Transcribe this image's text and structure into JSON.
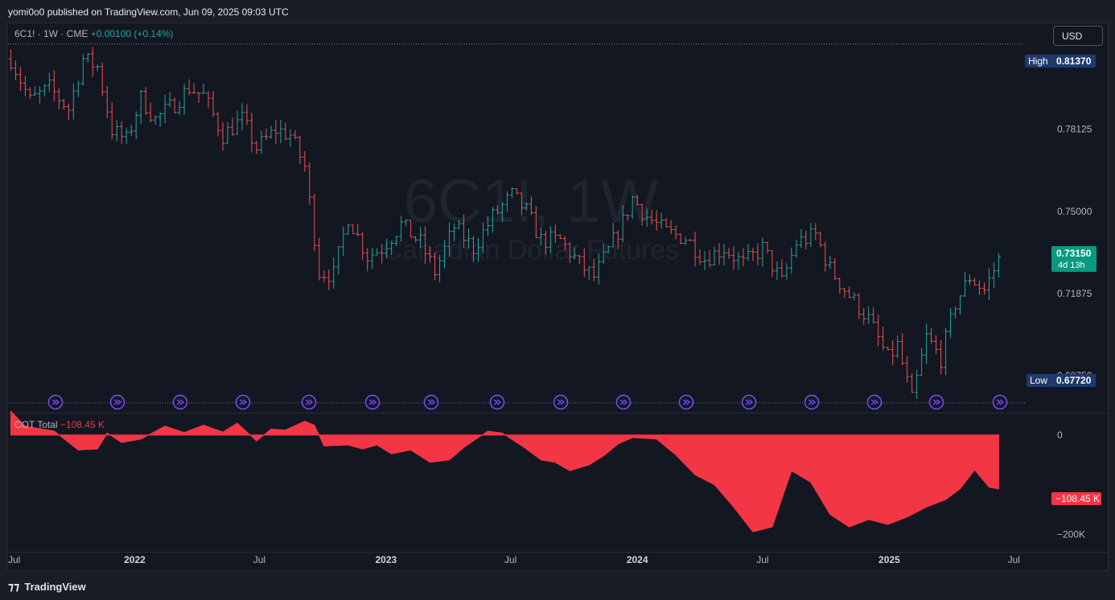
{
  "header": {
    "published": "yomi0o0 published on TradingView.com, Jun 09, 2025 09:03 UTC"
  },
  "legend": {
    "symbol": "6C1! · 1W · CME",
    "change": "+0.00100 (+0.14%)"
  },
  "currency_button": "USD",
  "watermark": {
    "title": "6C1!, 1W",
    "subtitle": "Canadian Dollar Futures"
  },
  "price_labels": {
    "high_tag": "High",
    "high_value": "0.81370",
    "low_tag": "Low",
    "low_value": "0.67720",
    "current_value": "0.73150",
    "current_countdown": "4d 13h"
  },
  "cot": {
    "title": "COT Total",
    "value": "−108.45 K",
    "tag": "−108.45 K"
  },
  "footer": {
    "brand": "TradingView"
  },
  "colors": {
    "up": "#26a69a",
    "down": "#ef5350",
    "cot_fill": "#f23645",
    "event_icon": "#7b4dff"
  },
  "icons": [
    "tv-logo-icon",
    "split-arrow-icon"
  ],
  "chart_data": [
    {
      "type": "ohlc",
      "title": "6C1!, 1W",
      "subtitle": "Canadian Dollar Futures",
      "interval": "1W",
      "y_ticks": [
        "0.78125",
        "0.75000",
        "0.71875",
        "0.68750"
      ],
      "y_tick_values": [
        0.78125,
        0.75,
        0.71875,
        0.6875
      ],
      "ylim": [
        0.6738,
        0.8218
      ],
      "x_ticks": [
        "Jul",
        "2022",
        "Jul",
        "2023",
        "Jul",
        "2024",
        "Jul",
        "2025",
        "Jul"
      ],
      "x_tick_dates": [
        "2021-07-01",
        "2022-01-01",
        "2022-07-01",
        "2023-01-01",
        "2023-07-01",
        "2024-01-01",
        "2024-07-01",
        "2025-01-01",
        "2025-07-01"
      ],
      "xlim": [
        "2021-07-01",
        "2025-07-10"
      ],
      "high": 0.8137,
      "low": 0.6772,
      "last": 0.7315,
      "price_path": [
        [
          "2021-07-05",
          0.808
        ],
        [
          "2021-08-02",
          0.792
        ],
        [
          "2021-08-30",
          0.797
        ],
        [
          "2021-09-27",
          0.789
        ],
        [
          "2021-10-18",
          0.808
        ],
        [
          "2021-11-08",
          0.805
        ],
        [
          "2021-11-29",
          0.781
        ],
        [
          "2021-12-20",
          0.777
        ],
        [
          "2022-01-10",
          0.793
        ],
        [
          "2022-01-31",
          0.785
        ],
        [
          "2022-02-28",
          0.791
        ],
        [
          "2022-03-21",
          0.797
        ],
        [
          "2022-04-11",
          0.794
        ],
        [
          "2022-05-09",
          0.779
        ],
        [
          "2022-06-06",
          0.785
        ],
        [
          "2022-06-27",
          0.774
        ],
        [
          "2022-07-25",
          0.781
        ],
        [
          "2022-08-15",
          0.779
        ],
        [
          "2022-09-05",
          0.767
        ],
        [
          "2022-09-26",
          0.727
        ],
        [
          "2022-10-17",
          0.726
        ],
        [
          "2022-11-07",
          0.748
        ],
        [
          "2022-12-05",
          0.733
        ],
        [
          "2022-12-26",
          0.736
        ],
        [
          "2023-01-23",
          0.745
        ],
        [
          "2023-02-20",
          0.738
        ],
        [
          "2023-03-13",
          0.727
        ],
        [
          "2023-04-10",
          0.744
        ],
        [
          "2023-05-08",
          0.736
        ],
        [
          "2023-06-05",
          0.748
        ],
        [
          "2023-07-03",
          0.756
        ],
        [
          "2023-07-24",
          0.75
        ],
        [
          "2023-08-14",
          0.739
        ],
        [
          "2023-09-11",
          0.739
        ],
        [
          "2023-10-09",
          0.73
        ],
        [
          "2023-10-30",
          0.725
        ],
        [
          "2023-11-20",
          0.735
        ],
        [
          "2023-12-11",
          0.746
        ],
        [
          "2023-12-25",
          0.755
        ],
        [
          "2024-01-15",
          0.748
        ],
        [
          "2024-02-12",
          0.742
        ],
        [
          "2024-03-11",
          0.74
        ],
        [
          "2024-04-08",
          0.732
        ],
        [
          "2024-05-06",
          0.736
        ],
        [
          "2024-06-03",
          0.73
        ],
        [
          "2024-07-01",
          0.736
        ],
        [
          "2024-07-29",
          0.723
        ],
        [
          "2024-08-19",
          0.738
        ],
        [
          "2024-09-16",
          0.741
        ],
        [
          "2024-10-07",
          0.728
        ],
        [
          "2024-11-04",
          0.718
        ],
        [
          "2024-12-02",
          0.709
        ],
        [
          "2024-12-30",
          0.694
        ],
        [
          "2025-01-13",
          0.699
        ],
        [
          "2025-02-03",
          0.678
        ],
        [
          "2025-02-24",
          0.702
        ],
        [
          "2025-03-17",
          0.694
        ],
        [
          "2025-04-07",
          0.715
        ],
        [
          "2025-04-28",
          0.725
        ],
        [
          "2025-05-19",
          0.72
        ],
        [
          "2025-06-09",
          0.7315
        ]
      ]
    },
    {
      "type": "area",
      "title": "COT Total",
      "y_ticks": [
        "0",
        "−200K"
      ],
      "y_tick_values": [
        0,
        -200000
      ],
      "ylim": [
        -235000,
        42000
      ],
      "last": -108450,
      "series": [
        [
          "2021-07-05",
          48000
        ],
        [
          "2021-07-26",
          18000
        ],
        [
          "2021-09-06",
          8000
        ],
        [
          "2021-10-11",
          -30000
        ],
        [
          "2021-11-08",
          -28000
        ],
        [
          "2021-11-22",
          4000
        ],
        [
          "2021-12-13",
          -15000
        ],
        [
          "2022-01-10",
          -8000
        ],
        [
          "2022-02-14",
          18000
        ],
        [
          "2022-03-14",
          5000
        ],
        [
          "2022-04-11",
          20000
        ],
        [
          "2022-05-09",
          6000
        ],
        [
          "2022-05-30",
          24000
        ],
        [
          "2022-06-27",
          -12000
        ],
        [
          "2022-07-18",
          12000
        ],
        [
          "2022-08-08",
          10000
        ],
        [
          "2022-09-05",
          28000
        ],
        [
          "2022-09-19",
          20000
        ],
        [
          "2022-10-03",
          -22000
        ],
        [
          "2022-11-07",
          -20000
        ],
        [
          "2022-11-28",
          -28000
        ],
        [
          "2022-12-19",
          -20000
        ],
        [
          "2023-01-09",
          -38000
        ],
        [
          "2023-02-06",
          -30000
        ],
        [
          "2023-03-06",
          -55000
        ],
        [
          "2023-04-03",
          -50000
        ],
        [
          "2023-04-24",
          -25000
        ],
        [
          "2023-05-29",
          8000
        ],
        [
          "2023-06-19",
          4000
        ],
        [
          "2023-07-24",
          -28000
        ],
        [
          "2023-08-14",
          -50000
        ],
        [
          "2023-09-04",
          -55000
        ],
        [
          "2023-09-25",
          -72000
        ],
        [
          "2023-10-23",
          -60000
        ],
        [
          "2023-11-13",
          -42000
        ],
        [
          "2023-12-04",
          -18000
        ],
        [
          "2023-12-25",
          -5000
        ],
        [
          "2024-01-29",
          -8000
        ],
        [
          "2024-02-26",
          -40000
        ],
        [
          "2024-03-25",
          -80000
        ],
        [
          "2024-04-22",
          -100000
        ],
        [
          "2024-05-20",
          -145000
        ],
        [
          "2024-06-17",
          -195000
        ],
        [
          "2024-07-15",
          -185000
        ],
        [
          "2024-08-12",
          -72000
        ],
        [
          "2024-09-09",
          -95000
        ],
        [
          "2024-10-07",
          -160000
        ],
        [
          "2024-11-04",
          -185000
        ],
        [
          "2024-12-02",
          -170000
        ],
        [
          "2024-12-30",
          -180000
        ],
        [
          "2025-01-27",
          -165000
        ],
        [
          "2025-02-24",
          -145000
        ],
        [
          "2025-03-24",
          -130000
        ],
        [
          "2025-04-14",
          -108000
        ],
        [
          "2025-05-05",
          -70000
        ],
        [
          "2025-05-26",
          -105000
        ],
        [
          "2025-06-09",
          -108450
        ]
      ]
    }
  ]
}
